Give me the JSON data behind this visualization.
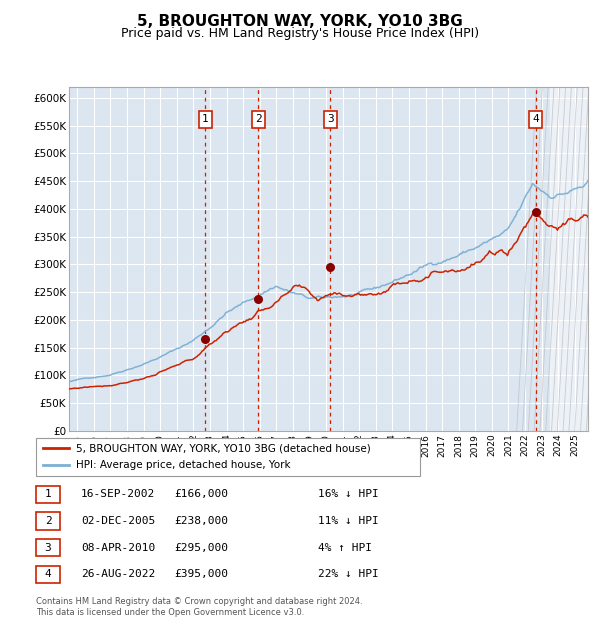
{
  "title": "5, BROUGHTON WAY, YORK, YO10 3BG",
  "subtitle": "Price paid vs. HM Land Registry's House Price Index (HPI)",
  "title_fontsize": 11,
  "subtitle_fontsize": 9,
  "background_color": "#ffffff",
  "plot_bg_color": "#dce6f1",
  "grid_color": "#ffffff",
  "ylim": [
    0,
    620000
  ],
  "yticks": [
    0,
    50000,
    100000,
    150000,
    200000,
    250000,
    300000,
    350000,
    400000,
    450000,
    500000,
    550000,
    600000
  ],
  "xlim_start": 1994.5,
  "xlim_end": 2025.8,
  "xticks": [
    1995,
    1996,
    1997,
    1998,
    1999,
    2000,
    2001,
    2002,
    2003,
    2004,
    2005,
    2006,
    2007,
    2008,
    2009,
    2010,
    2011,
    2012,
    2013,
    2014,
    2015,
    2016,
    2017,
    2018,
    2019,
    2020,
    2021,
    2022,
    2023,
    2024,
    2025
  ],
  "hpi_color": "#7bafd4",
  "price_color": "#cc2200",
  "sale_marker_color": "#880000",
  "sale_vline_color": "#cc2200",
  "sale_dates": [
    2002.71,
    2005.92,
    2010.27,
    2022.65
  ],
  "sale_prices": [
    166000,
    238000,
    295000,
    395000
  ],
  "sale_labels": [
    "1",
    "2",
    "3",
    "4"
  ],
  "future_start": 2023.5,
  "table_entries": [
    {
      "num": "1",
      "date": "16-SEP-2002",
      "price": "£166,000",
      "hpi": "16% ↓ HPI"
    },
    {
      "num": "2",
      "date": "02-DEC-2005",
      "price": "£238,000",
      "hpi": "11% ↓ HPI"
    },
    {
      "num": "3",
      "date": "08-APR-2010",
      "price": "£295,000",
      "hpi": "4% ↑ HPI"
    },
    {
      "num": "4",
      "date": "26-AUG-2022",
      "price": "£395,000",
      "hpi": "22% ↓ HPI"
    }
  ],
  "footer": "Contains HM Land Registry data © Crown copyright and database right 2024.\nThis data is licensed under the Open Government Licence v3.0.",
  "legend_line1": "5, BROUGHTON WAY, YORK, YO10 3BG (detached house)",
  "legend_line2": "HPI: Average price, detached house, York"
}
